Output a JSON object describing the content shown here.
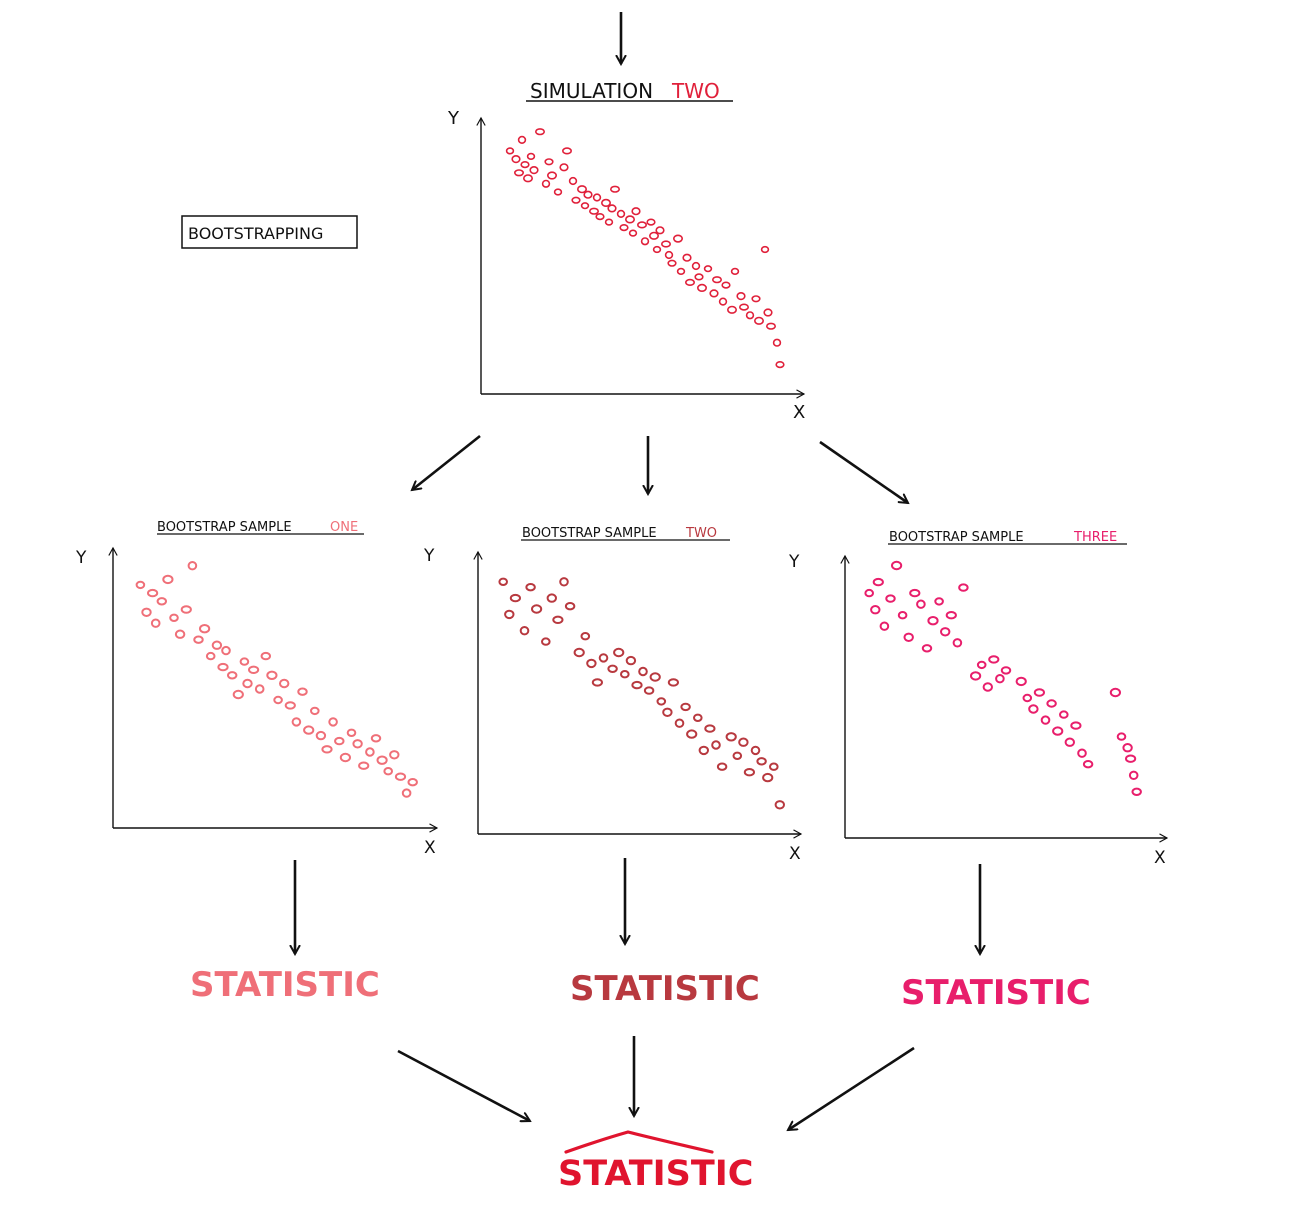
{
  "colors": {
    "ink": "#111111",
    "simulation": "#e0203a",
    "sample_one": "#ef6f78",
    "sample_two": "#b8393f",
    "sample_three": "#e81e6b",
    "final": "#e0142e"
  },
  "bootstrapping_label": "BOOTSTRAPPING",
  "simulation": {
    "title_prefix": "SIMULATION",
    "title_highlight": "TWO",
    "xlabel": "X",
    "ylabel": "Y"
  },
  "samples": [
    {
      "title_prefix": "BOOTSTRAP SAMPLE",
      "title_highlight": "ONE",
      "xlabel": "X",
      "ylabel": "Y",
      "statistic_label": "STATISTIC"
    },
    {
      "title_prefix": "BOOTSTRAP SAMPLE",
      "title_highlight": "TWO",
      "xlabel": "X",
      "ylabel": "Y",
      "statistic_label": "STATISTIC"
    },
    {
      "title_prefix": "BOOTSTRAP SAMPLE",
      "title_highlight": "THREE",
      "xlabel": "X",
      "ylabel": "Y",
      "statistic_label": "STATISTIC"
    }
  ],
  "final_statistic_label": "STATISTIC",
  "chart_data": [
    {
      "type": "scatter",
      "title": "SIMULATION TWO",
      "xlabel": "X",
      "ylabel": "Y",
      "x": [
        0.06,
        0.08,
        0.09,
        0.1,
        0.11,
        0.12,
        0.13,
        0.14,
        0.16,
        0.18,
        0.19,
        0.2,
        0.22,
        0.24,
        0.25,
        0.27,
        0.28,
        0.3,
        0.31,
        0.32,
        0.34,
        0.35,
        0.36,
        0.38,
        0.39,
        0.4,
        0.41,
        0.43,
        0.44,
        0.46,
        0.47,
        0.48,
        0.5,
        0.51,
        0.53,
        0.54,
        0.55,
        0.56,
        0.58,
        0.59,
        0.6,
        0.62,
        0.63,
        0.65,
        0.66,
        0.68,
        0.69,
        0.7,
        0.72,
        0.74,
        0.75,
        0.77,
        0.78,
        0.8,
        0.81,
        0.83,
        0.84,
        0.86,
        0.88,
        0.89,
        0.91,
        0.92,
        0.93,
        0.95,
        0.96
      ],
      "y": [
        0.88,
        0.85,
        0.8,
        0.92,
        0.83,
        0.78,
        0.86,
        0.81,
        0.95,
        0.76,
        0.84,
        0.79,
        0.73,
        0.82,
        0.88,
        0.77,
        0.7,
        0.74,
        0.68,
        0.72,
        0.66,
        0.71,
        0.64,
        0.69,
        0.62,
        0.67,
        0.74,
        0.65,
        0.6,
        0.63,
        0.58,
        0.66,
        0.61,
        0.55,
        0.62,
        0.57,
        0.52,
        0.59,
        0.54,
        0.5,
        0.47,
        0.56,
        0.44,
        0.49,
        0.4,
        0.46,
        0.42,
        0.38,
        0.45,
        0.36,
        0.41,
        0.33,
        0.39,
        0.3,
        0.44,
        0.35,
        0.31,
        0.28,
        0.34,
        0.26,
        0.52,
        0.29,
        0.24,
        0.18,
        0.1
      ],
      "ylim": [
        0,
        1
      ],
      "xlim": [
        0,
        1
      ]
    },
    {
      "type": "scatter",
      "title": "BOOTSTRAP SAMPLE ONE",
      "xlabel": "X",
      "ylabel": "Y",
      "x": [
        0.06,
        0.08,
        0.1,
        0.11,
        0.13,
        0.15,
        0.17,
        0.19,
        0.21,
        0.23,
        0.25,
        0.27,
        0.29,
        0.31,
        0.33,
        0.34,
        0.36,
        0.38,
        0.4,
        0.41,
        0.43,
        0.45,
        0.47,
        0.49,
        0.51,
        0.53,
        0.55,
        0.57,
        0.59,
        0.61,
        0.63,
        0.65,
        0.67,
        0.69,
        0.71,
        0.73,
        0.75,
        0.77,
        0.79,
        0.81,
        0.83,
        0.85,
        0.87,
        0.89,
        0.91,
        0.93,
        0.95
      ],
      "y": [
        0.88,
        0.78,
        0.85,
        0.74,
        0.82,
        0.9,
        0.76,
        0.7,
        0.79,
        0.95,
        0.68,
        0.72,
        0.62,
        0.66,
        0.58,
        0.64,
        0.55,
        0.48,
        0.6,
        0.52,
        0.57,
        0.5,
        0.62,
        0.55,
        0.46,
        0.52,
        0.44,
        0.38,
        0.49,
        0.35,
        0.42,
        0.33,
        0.28,
        0.38,
        0.31,
        0.25,
        0.34,
        0.3,
        0.22,
        0.27,
        0.32,
        0.24,
        0.2,
        0.26,
        0.18,
        0.12,
        0.16
      ],
      "ylim": [
        0,
        1
      ],
      "xlim": [
        0,
        1
      ]
    },
    {
      "type": "scatter",
      "title": "BOOTSTRAP SAMPLE TWO",
      "xlabel": "X",
      "ylabel": "Y",
      "x": [
        0.05,
        0.07,
        0.09,
        0.12,
        0.14,
        0.16,
        0.19,
        0.21,
        0.23,
        0.25,
        0.27,
        0.3,
        0.32,
        0.34,
        0.36,
        0.38,
        0.41,
        0.43,
        0.45,
        0.47,
        0.49,
        0.51,
        0.53,
        0.55,
        0.57,
        0.59,
        0.61,
        0.63,
        0.65,
        0.67,
        0.69,
        0.71,
        0.73,
        0.75,
        0.77,
        0.8,
        0.82,
        0.84,
        0.86,
        0.88,
        0.9,
        0.92,
        0.94,
        0.96
      ],
      "y": [
        0.92,
        0.8,
        0.86,
        0.74,
        0.9,
        0.82,
        0.7,
        0.86,
        0.78,
        0.92,
        0.83,
        0.66,
        0.72,
        0.62,
        0.55,
        0.64,
        0.6,
        0.66,
        0.58,
        0.63,
        0.54,
        0.59,
        0.52,
        0.57,
        0.48,
        0.44,
        0.55,
        0.4,
        0.46,
        0.36,
        0.42,
        0.3,
        0.38,
        0.32,
        0.24,
        0.35,
        0.28,
        0.33,
        0.22,
        0.3,
        0.26,
        0.2,
        0.24,
        0.1
      ],
      "ylim": [
        0,
        1
      ],
      "xlim": [
        0,
        1
      ]
    },
    {
      "type": "scatter",
      "title": "BOOTSTRAP SAMPLE THREE",
      "xlabel": "X",
      "ylabel": "Y",
      "x": [
        0.05,
        0.07,
        0.08,
        0.1,
        0.12,
        0.14,
        0.16,
        0.18,
        0.2,
        0.22,
        0.24,
        0.26,
        0.28,
        0.3,
        0.32,
        0.34,
        0.36,
        0.4,
        0.42,
        0.44,
        0.46,
        0.48,
        0.5,
        0.55,
        0.57,
        0.59,
        0.61,
        0.63,
        0.65,
        0.67,
        0.69,
        0.71,
        0.73,
        0.75,
        0.77,
        0.86,
        0.88,
        0.9,
        0.91,
        0.92,
        0.93
      ],
      "y": [
        0.88,
        0.82,
        0.92,
        0.76,
        0.86,
        0.98,
        0.8,
        0.72,
        0.88,
        0.84,
        0.68,
        0.78,
        0.85,
        0.74,
        0.8,
        0.7,
        0.9,
        0.58,
        0.62,
        0.54,
        0.64,
        0.57,
        0.6,
        0.56,
        0.5,
        0.46,
        0.52,
        0.42,
        0.48,
        0.38,
        0.44,
        0.34,
        0.4,
        0.3,
        0.26,
        0.52,
        0.36,
        0.32,
        0.28,
        0.22,
        0.16
      ],
      "ylim": [
        0,
        1
      ],
      "xlim": [
        0,
        1
      ]
    }
  ]
}
